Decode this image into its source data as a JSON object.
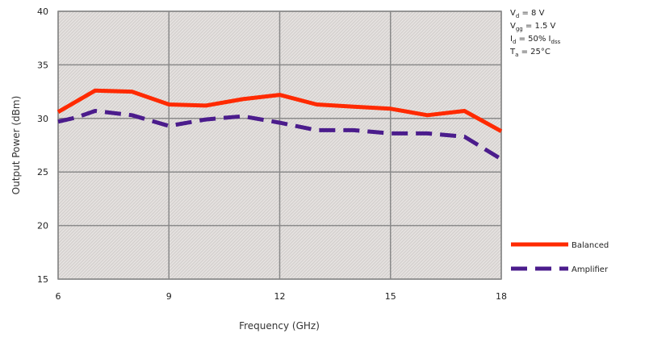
{
  "chart_data": {
    "type": "line",
    "xlabel": "Frequency (GHz)",
    "ylabel": "Output Power (dBm)",
    "xlim": [
      6,
      18
    ],
    "ylim": [
      15,
      40
    ],
    "xticks": [
      "6",
      "9",
      "12",
      "15",
      "18"
    ],
    "yticks": [
      "15",
      "20",
      "25",
      "30",
      "35",
      "40"
    ],
    "grid": true,
    "legend_position": "right",
    "series": [
      {
        "name": "Balanced",
        "color": "#ff2a00",
        "style": "solid",
        "x": [
          6,
          6.5,
          7,
          8,
          9,
          10,
          11,
          12,
          13,
          14,
          15,
          16,
          17,
          18
        ],
        "y": [
          30.6,
          31.6,
          32.6,
          32.5,
          31.3,
          31.2,
          31.8,
          32.2,
          31.3,
          31.1,
          30.9,
          30.3,
          30.7,
          28.8
        ]
      },
      {
        "name": "Amplifier",
        "color": "#4b1c8c",
        "style": "dashed",
        "x": [
          6,
          6.5,
          7,
          8,
          9,
          10,
          11,
          12,
          13,
          14,
          15,
          16,
          17,
          18
        ],
        "y": [
          29.7,
          30.1,
          30.7,
          30.3,
          29.3,
          29.9,
          30.2,
          29.6,
          28.9,
          28.9,
          28.6,
          28.6,
          28.3,
          26.2
        ]
      }
    ],
    "conditions": [
      {
        "main": "V",
        "sub": "d",
        "rest": " = 8 V"
      },
      {
        "main": "V",
        "sub": "gg",
        "rest": " = 1.5 V"
      },
      {
        "main": "I",
        "sub": "d",
        "rest": " = 50% I",
        "sub2": "dss"
      },
      {
        "main": "T",
        "sub": "a",
        "rest": " = 25°C"
      }
    ]
  }
}
